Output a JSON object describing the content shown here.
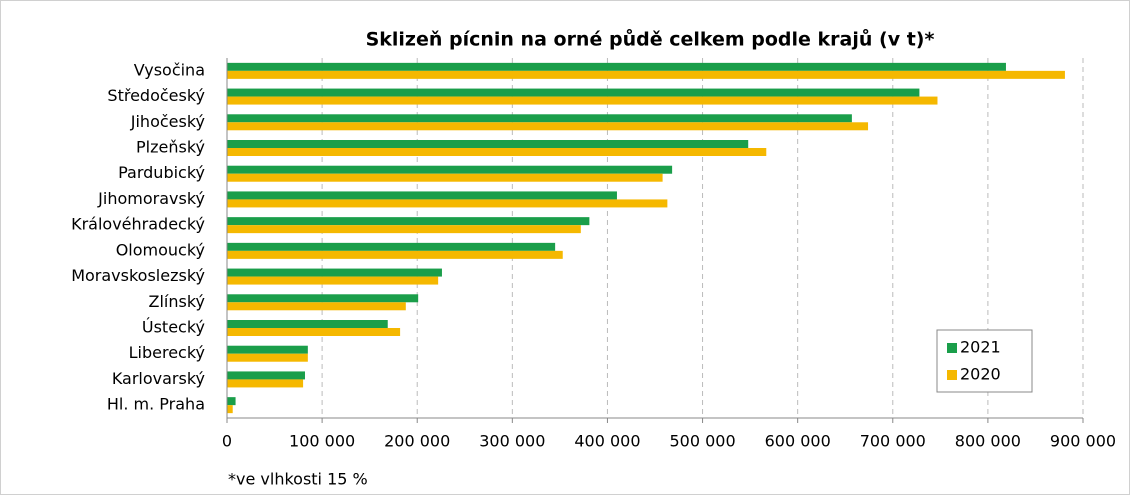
{
  "chart_data": {
    "type": "hbar",
    "title": "Sklizeň pícnin na orné půdě celkem podle krajů (v t)*",
    "footnote": "*ve vlhkosti 15 %",
    "categories": [
      "Vysočina",
      "Středočeský",
      "Jihočeský",
      "Plzeňský",
      "Pardubický",
      "Jihomoravský",
      "Královéhradecký",
      "Olomoucký",
      "Moravskoslezský",
      "Zlínský",
      "Ústecký",
      "Liberecký",
      "Karlovarský",
      "Hl. m. Praha"
    ],
    "series": [
      {
        "name": "2021",
        "color": "#1a9e4a",
        "values": [
          819000,
          728000,
          657000,
          548000,
          468000,
          410000,
          381000,
          345000,
          226000,
          201000,
          169000,
          85000,
          82000,
          9000
        ]
      },
      {
        "name": "2020",
        "color": "#f5b800",
        "values": [
          881000,
          747000,
          674000,
          567000,
          458000,
          463000,
          372000,
          353000,
          222000,
          188000,
          182000,
          85000,
          80000,
          6000
        ]
      }
    ],
    "xlim": [
      0,
      900000
    ],
    "xticks": [
      0,
      {
        "value": 100000,
        "label": "100 000"
      },
      {
        "value": 200000,
        "label": "200 000"
      },
      {
        "value": 300000,
        "label": "300 000"
      },
      {
        "value": 400000,
        "label": "400 000"
      },
      {
        "value": 500000,
        "label": "500 000"
      },
      {
        "value": 600000,
        "label": "600 000"
      },
      {
        "value": 700000,
        "label": "700 000"
      },
      {
        "value": 800000,
        "label": "800 000"
      },
      {
        "value": 900000,
        "label": "900 000"
      }
    ],
    "grid": true,
    "legend": "lower right"
  }
}
